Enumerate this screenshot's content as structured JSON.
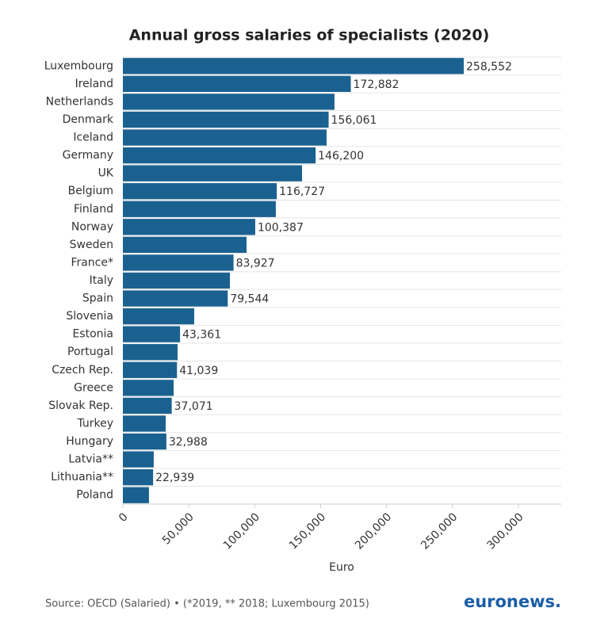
{
  "chart_data": {
    "type": "bar",
    "orientation": "horizontal",
    "title": "Annual gross salaries of specialists (2020)",
    "categories": [
      "Luxembourg",
      "Ireland",
      "Netherlands",
      "Denmark",
      "Iceland",
      "Germany",
      "UK",
      "Belgium",
      "Finland",
      "Norway",
      "Sweden",
      "France*",
      "Italy",
      "Spain",
      "Slovenia",
      "Estonia",
      "Portugal",
      "Czech Rep.",
      "Greece",
      "Slovak Rep.",
      "Turkey",
      "Hungary",
      "Latvia**",
      "Lithuania**",
      "Poland"
    ],
    "values": [
      258552,
      172882,
      160500,
      156061,
      154500,
      146200,
      135900,
      116727,
      116000,
      100387,
      93800,
      83927,
      81200,
      79544,
      54100,
      43361,
      41500,
      41039,
      38500,
      37071,
      32500,
      32988,
      23400,
      22939,
      19800
    ],
    "value_labels": [
      "258,552",
      "172,882",
      null,
      "156,061",
      null,
      "146,200",
      null,
      "116,727",
      null,
      "100,387",
      null,
      "83,927",
      null,
      "79,544",
      null,
      "43,361",
      null,
      "41,039",
      null,
      "37,071",
      null,
      "32,988",
      null,
      "22,939",
      null
    ],
    "color": "#1b6190",
    "xlim": [
      0,
      332500
    ],
    "xticks": [
      0,
      {
        "value": 50000,
        "label": "50,000"
      },
      {
        "value": 100000,
        "label": "100,000"
      },
      {
        "value": 150000,
        "label": "150,000"
      },
      {
        "value": 200000,
        "label": "200,000"
      },
      {
        "value": 250000,
        "label": "250,000"
      },
      {
        "value": 300000,
        "label": "300,000"
      }
    ],
    "x_label": "Euro",
    "grid": true,
    "source": "Source: OECD (Salaried) • (*2019, ** 2018; Luxembourg 2015)",
    "brand": "euronews."
  }
}
